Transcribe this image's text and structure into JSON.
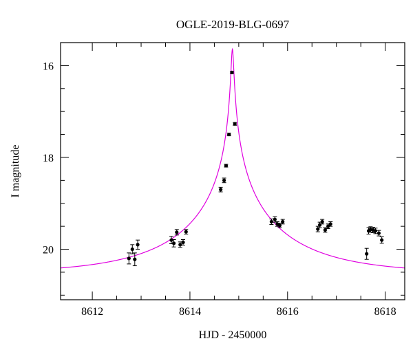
{
  "chart_data": {
    "type": "scatter",
    "title": "OGLE-2019-BLG-0697",
    "xlabel": "HJD - 2450000",
    "ylabel": "I magnitude",
    "xlim": [
      8611.35,
      8618.4
    ],
    "ylim": [
      21.1,
      15.5
    ],
    "y_inverted": true,
    "grid": false,
    "x_major_ticks": [
      8612,
      8614,
      8616,
      8618
    ],
    "x_minor_ticks": [
      8612.5,
      8613,
      8613.5,
      8614.5,
      8615,
      8615.5,
      8616.5,
      8617,
      8617.5
    ],
    "y_major_ticks": [
      16,
      18,
      20
    ],
    "y_minor_ticks": [
      16.5,
      17,
      17.5,
      18.5,
      19,
      19.5,
      20.5,
      21
    ],
    "x_tick_labels": [
      "8612",
      "8614",
      "8616",
      "8618"
    ],
    "y_tick_labels": [
      "16",
      "18",
      "20"
    ],
    "model_color": "#e000e0",
    "marker_color": "#000000",
    "series": [
      {
        "points": [
          {
            "x": 8612.75,
            "y": 20.2,
            "err": 0.12
          },
          {
            "x": 8612.82,
            "y": 20.0,
            "err": 0.1
          },
          {
            "x": 8612.87,
            "y": 20.22,
            "err": 0.14
          },
          {
            "x": 8612.93,
            "y": 19.9,
            "err": 0.1
          },
          {
            "x": 8613.62,
            "y": 19.8,
            "err": 0.08
          },
          {
            "x": 8613.67,
            "y": 19.87,
            "err": 0.08
          },
          {
            "x": 8613.73,
            "y": 19.63,
            "err": 0.06
          },
          {
            "x": 8613.8,
            "y": 19.9,
            "err": 0.06
          },
          {
            "x": 8613.86,
            "y": 19.85,
            "err": 0.06
          },
          {
            "x": 8613.92,
            "y": 19.62,
            "err": 0.05
          },
          {
            "x": 8614.63,
            "y": 18.7,
            "err": 0.05
          },
          {
            "x": 8614.7,
            "y": 18.5,
            "err": 0.05
          },
          {
            "x": 8614.74,
            "y": 18.18,
            "err": 0.03
          },
          {
            "x": 8614.8,
            "y": 17.5,
            "err": 0.03
          },
          {
            "x": 8614.86,
            "y": 16.15,
            "err": 0.02
          },
          {
            "x": 8614.92,
            "y": 17.27,
            "err": 0.03
          },
          {
            "x": 8615.67,
            "y": 19.4,
            "err": 0.06
          },
          {
            "x": 8615.74,
            "y": 19.35,
            "err": 0.06
          },
          {
            "x": 8615.79,
            "y": 19.45,
            "err": 0.05
          },
          {
            "x": 8615.84,
            "y": 19.48,
            "err": 0.05
          },
          {
            "x": 8615.9,
            "y": 19.4,
            "err": 0.05
          },
          {
            "x": 8616.62,
            "y": 19.56,
            "err": 0.06
          },
          {
            "x": 8616.66,
            "y": 19.47,
            "err": 0.06
          },
          {
            "x": 8616.71,
            "y": 19.4,
            "err": 0.05
          },
          {
            "x": 8616.77,
            "y": 19.58,
            "err": 0.05
          },
          {
            "x": 8616.83,
            "y": 19.5,
            "err": 0.05
          },
          {
            "x": 8616.88,
            "y": 19.45,
            "err": 0.05
          },
          {
            "x": 8617.62,
            "y": 20.1,
            "err": 0.12
          },
          {
            "x": 8617.66,
            "y": 19.6,
            "err": 0.07
          },
          {
            "x": 8617.7,
            "y": 19.57,
            "err": 0.06
          },
          {
            "x": 8617.75,
            "y": 19.58,
            "err": 0.06
          },
          {
            "x": 8617.8,
            "y": 19.6,
            "err": 0.06
          },
          {
            "x": 8617.87,
            "y": 19.65,
            "err": 0.06
          },
          {
            "x": 8617.93,
            "y": 19.8,
            "err": 0.07
          }
        ]
      }
    ],
    "model": {
      "type": "point-lens",
      "t0": 8614.87,
      "u0": 0.0111,
      "tE": 2.25,
      "I_base": 20.53
    }
  }
}
